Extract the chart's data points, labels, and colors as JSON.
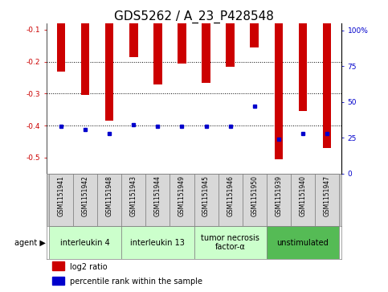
{
  "title": "GDS5262 / A_23_P428548",
  "samples": [
    "GSM1151941",
    "GSM1151942",
    "GSM1151948",
    "GSM1151943",
    "GSM1151944",
    "GSM1151949",
    "GSM1151945",
    "GSM1151946",
    "GSM1151950",
    "GSM1151939",
    "GSM1151940",
    "GSM1151947"
  ],
  "log2_ratio": [
    -0.23,
    -0.305,
    -0.385,
    -0.185,
    -0.27,
    -0.205,
    -0.265,
    -0.215,
    -0.155,
    -0.505,
    -0.355,
    -0.47
  ],
  "percentile_rank": [
    33,
    31,
    28,
    34,
    33,
    33,
    33,
    33,
    47,
    24,
    28,
    28
  ],
  "agents": [
    {
      "label": "interleukin 4",
      "samples": [
        0,
        1,
        2
      ],
      "color": "#ccffcc"
    },
    {
      "label": "interleukin 13",
      "samples": [
        3,
        4,
        5
      ],
      "color": "#ccffcc"
    },
    {
      "label": "tumor necrosis\nfactor-α",
      "samples": [
        6,
        7,
        8
      ],
      "color": "#ccffcc"
    },
    {
      "label": "unstimulated",
      "samples": [
        9,
        10,
        11
      ],
      "color": "#55bb55"
    }
  ],
  "ylim_left": [
    -0.55,
    -0.08
  ],
  "ylim_right": [
    0,
    105
  ],
  "yticks_left": [
    -0.5,
    -0.4,
    -0.3,
    -0.2,
    -0.1
  ],
  "yticks_right": [
    0,
    25,
    50,
    75,
    100
  ],
  "bar_color": "#cc0000",
  "dot_color": "#0000cc",
  "bg_color": "#ffffff",
  "title_fontsize": 11,
  "tick_fontsize": 6.5,
  "sample_fontsize": 5.5,
  "agent_fontsize": 7
}
